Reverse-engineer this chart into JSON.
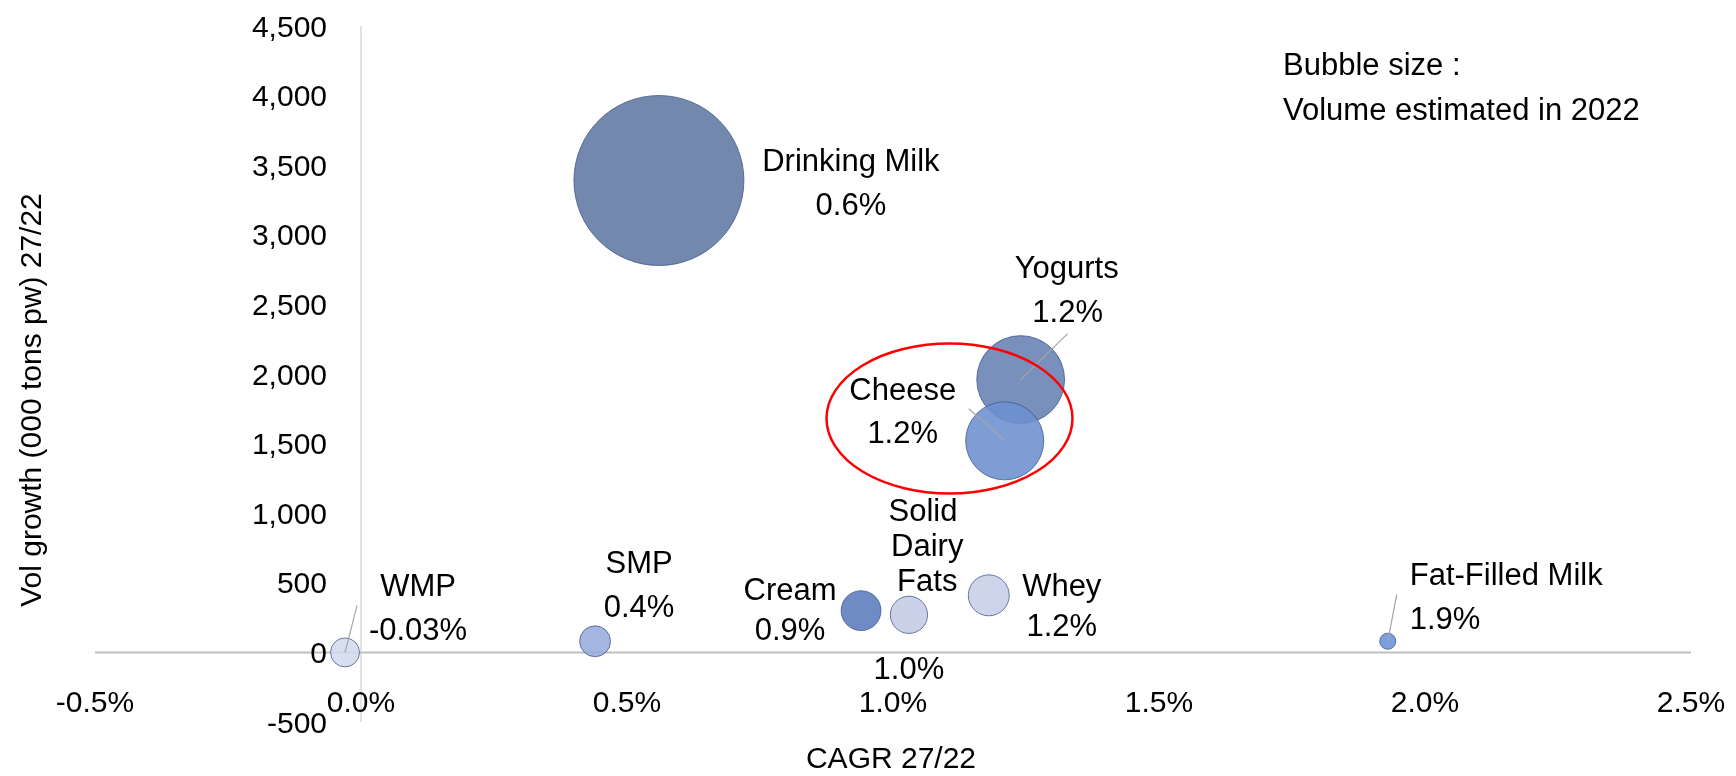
{
  "chart_data": {
    "type": "bubble",
    "xlabel": "CAGR 27/22",
    "ylabel": "Vol growth (000 tons pw) 27/22",
    "annotations": [
      "Bubble size :",
      "Volume estimated in 2022",
      "0.6%",
      {
        "text": "-0.03%",
        "x": -0.03,
        "y": 0
      },
      {
        "text": "0.4%",
        "x": 0.44,
        "y": 80
      },
      {
        "text": "0.9%",
        "x": 0.94,
        "y": 300
      },
      {
        "text": "1.0%",
        "x": 1.03,
        "y": 270
      },
      {
        "text": "1.2%",
        "x": 1.18,
        "y": 410
      },
      {
        "text": "1.2%",
        "x": 1.24,
        "y": 1960
      },
      {
        "text": "1.2%",
        "x": 1.21,
        "y": 1520
      },
      {
        "text": "1.9%",
        "x": 1.93,
        "y": 80
      }
    ],
    "xlim": [
      -0.5,
      2.5
    ],
    "xticks": [
      {
        "value": -0.5,
        "label": "-0.5%"
      },
      {
        "value": 0,
        "label": "0.0%"
      },
      {
        "value": 0.5,
        "label": "0.5%"
      },
      {
        "value": 1,
        "label": "1.0%"
      },
      {
        "value": 1.5,
        "label": "1.5%"
      },
      {
        "value": 2,
        "label": "2.0%"
      },
      {
        "value": 2.5,
        "label": "2.5%"
      }
    ],
    "ylim": [
      -500,
      4500
    ],
    "yticks": [
      -500,
      0,
      500,
      {
        "value": 1000,
        "label": "1,000"
      },
      {
        "value": 1500,
        "label": "1,500"
      },
      {
        "value": 2000,
        "label": "2,000"
      },
      {
        "value": 2500,
        "label": "2,500"
      },
      {
        "value": 3000,
        "label": "3,000"
      },
      {
        "value": 3500,
        "label": "3,500"
      },
      {
        "value": 4000,
        "label": "4,000"
      },
      {
        "value": 4500,
        "label": "4,500"
      }
    ],
    "series": [
      {
        "name": "WMP",
        "color": "#d3dbee",
        "x": [
          -0.03
        ],
        "values": [
          0
        ],
        "sizes": [
          0.029
        ]
      },
      {
        "name": "SMP",
        "color": "#97acdb",
        "x": [
          0.44
        ],
        "values": [
          80
        ],
        "sizes": [
          0.033
        ]
      },
      {
        "name": "Drinking Milk",
        "color": "#5e77a1",
        "x": [
          0.56
        ],
        "values": [
          3390
        ],
        "sizes": [
          1
        ]
      },
      {
        "name": "Cream",
        "color": "#5b7bbd",
        "x": [
          0.94
        ],
        "values": [
          300
        ],
        "sizes": [
          0.055
        ]
      },
      {
        "name": "Solid Dairy Fats",
        "color": "#c3cbe6",
        "x": [
          1.03
        ],
        "values": [
          270
        ],
        "sizes": [
          0.048
        ]
      },
      {
        "name": "Whey",
        "color": "#c6cee8",
        "x": [
          1.18
        ],
        "values": [
          410
        ],
        "sizes": [
          0.058
        ]
      },
      {
        "name": "Yogurts",
        "color": "#6681b3",
        "x": [
          1.24
        ],
        "values": [
          1960
        ],
        "sizes": [
          0.267
        ]
      },
      {
        "name": "Cheese",
        "color": "#6c8fcf",
        "x": [
          1.21
        ],
        "values": [
          1520
        ],
        "sizes": [
          0.211
        ]
      },
      {
        "name": "Fat-Filled Milk",
        "color": "#6a92d6",
        "x": [
          1.93
        ],
        "values": [
          80
        ],
        "sizes": [
          0.009
        ]
      }
    ]
  }
}
